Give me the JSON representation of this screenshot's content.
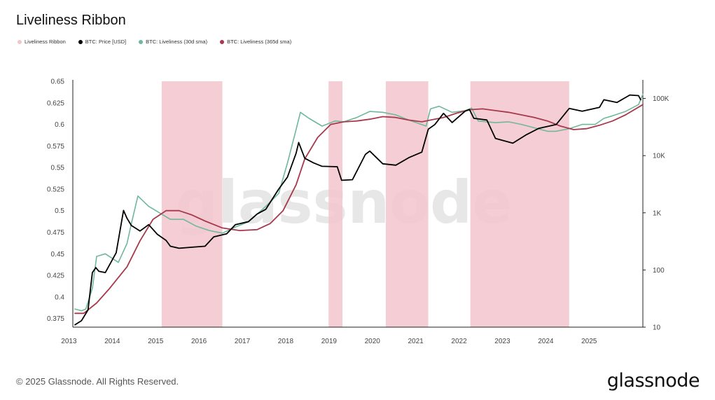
{
  "title": "Liveliness Ribbon",
  "legend": [
    {
      "label": "Liveliness Ribbon",
      "color": "#f2c6cc"
    },
    {
      "label": "BTC: Price [USD]",
      "color": "#000000"
    },
    {
      "label": "BTC: Liveliness (30d sma)",
      "color": "#6fb89a"
    },
    {
      "label": "BTC: Liveliness (365d sma)",
      "color": "#a8394d"
    }
  ],
  "watermark": "glassnode",
  "footer": "© 2025 Glassnode. All Rights Reserved.",
  "logo": "glassnode",
  "colors": {
    "ribbon": "#f2c6cc",
    "price": "#000000",
    "sma30": "#6fb89a",
    "sma365": "#a8394d",
    "axis": "#222222"
  },
  "chart_data": {
    "type": "line",
    "title": "Liveliness Ribbon",
    "x_range": [
      2012.75,
      2025.9
    ],
    "x_ticks": [
      "2013",
      "2014",
      "2015",
      "2016",
      "2017",
      "2018",
      "2019",
      "2020",
      "2021",
      "2022",
      "2023",
      "2024",
      "2025"
    ],
    "y_left": {
      "label": "",
      "range": [
        0.365,
        0.65
      ],
      "ticks": [
        "0.65",
        "0.625",
        "0.6",
        "0.575",
        "0.55",
        "0.525",
        "0.5",
        "0.475",
        "0.45",
        "0.425",
        "0.4",
        "0.375"
      ]
    },
    "y_right": {
      "label": "",
      "scale": "log",
      "range": [
        10,
        200000
      ],
      "ticks": [
        "100K",
        "10K",
        "1K",
        "100",
        "10"
      ]
    },
    "ribbon_periods": [
      [
        2014.8,
        2016.2
      ],
      [
        2018.65,
        2018.97
      ],
      [
        2019.97,
        2020.95
      ],
      [
        2021.92,
        2024.2
      ]
    ],
    "series": [
      {
        "name": "BTC: Price [USD]",
        "axis": "right",
        "x": [
          2012.8,
          2012.95,
          2013.1,
          2013.2,
          2013.28,
          2013.35,
          2013.5,
          2013.75,
          2013.92,
          2014.0,
          2014.1,
          2014.3,
          2014.5,
          2014.7,
          2014.9,
          2015.0,
          2015.2,
          2015.5,
          2015.8,
          2016.0,
          2016.3,
          2016.5,
          2016.8,
          2017.0,
          2017.2,
          2017.5,
          2017.7,
          2017.9,
          2017.96,
          2018.1,
          2018.3,
          2018.5,
          2018.85,
          2018.95,
          2019.2,
          2019.5,
          2019.6,
          2019.9,
          2020.2,
          2020.5,
          2020.8,
          2020.95,
          2021.1,
          2021.3,
          2021.5,
          2021.8,
          2021.9,
          2022.0,
          2022.3,
          2022.5,
          2022.9,
          2023.2,
          2023.5,
          2023.9,
          2024.2,
          2024.5,
          2024.9,
          2025.0,
          2025.3,
          2025.6,
          2025.8,
          2025.85
        ],
        "y": [
          11,
          13,
          20,
          90,
          110,
          95,
          90,
          200,
          1100,
          800,
          600,
          480,
          620,
          420,
          330,
          260,
          240,
          250,
          260,
          380,
          430,
          620,
          700,
          950,
          1150,
          2600,
          4200,
          11000,
          17000,
          9000,
          7500,
          6500,
          6400,
          3700,
          3800,
          10500,
          12000,
          7200,
          6800,
          9200,
          11500,
          29000,
          35000,
          55000,
          38000,
          60000,
          64000,
          45000,
          42000,
          20000,
          16500,
          23000,
          30000,
          35000,
          67000,
          60000,
          70000,
          95000,
          85000,
          115000,
          112000,
          95000
        ]
      },
      {
        "name": "BTC: Liveliness (30d sma)",
        "axis": "left",
        "x": [
          2012.8,
          2012.95,
          2013.05,
          2013.2,
          2013.3,
          2013.5,
          2013.8,
          2014.0,
          2014.1,
          2014.25,
          2014.5,
          2014.8,
          2015.0,
          2015.3,
          2015.6,
          2015.9,
          2016.2,
          2016.5,
          2016.8,
          2017.2,
          2017.5,
          2017.7,
          2017.9,
          2018.0,
          2018.2,
          2018.5,
          2018.8,
          2019.0,
          2019.3,
          2019.6,
          2019.9,
          2020.2,
          2020.5,
          2020.9,
          2021.0,
          2021.2,
          2021.5,
          2021.8,
          2021.95,
          2022.1,
          2022.5,
          2022.8,
          2023.1,
          2023.4,
          2023.7,
          2023.9,
          2024.2,
          2024.5,
          2024.8,
          2025.0,
          2025.2,
          2025.5,
          2025.8,
          2025.9
        ],
        "y": [
          0.386,
          0.384,
          0.386,
          0.41,
          0.447,
          0.45,
          0.44,
          0.462,
          0.485,
          0.517,
          0.505,
          0.496,
          0.49,
          0.49,
          0.482,
          0.477,
          0.474,
          0.481,
          0.487,
          0.505,
          0.52,
          0.555,
          0.594,
          0.614,
          0.607,
          0.598,
          0.604,
          0.603,
          0.608,
          0.615,
          0.614,
          0.611,
          0.605,
          0.598,
          0.618,
          0.621,
          0.614,
          0.616,
          0.619,
          0.604,
          0.602,
          0.603,
          0.6,
          0.596,
          0.592,
          0.592,
          0.595,
          0.6,
          0.6,
          0.607,
          0.61,
          0.615,
          0.623,
          0.635
        ]
      },
      {
        "name": "BTC: Liveliness (365d sma)",
        "axis": "left",
        "x": [
          2012.8,
          2013.0,
          2013.3,
          2013.6,
          2014.0,
          2014.3,
          2014.6,
          2014.9,
          2015.2,
          2015.5,
          2015.8,
          2016.2,
          2016.6,
          2017.0,
          2017.3,
          2017.6,
          2017.9,
          2018.1,
          2018.4,
          2018.7,
          2019.0,
          2019.3,
          2019.6,
          2019.9,
          2020.2,
          2020.5,
          2020.8,
          2021.0,
          2021.3,
          2021.6,
          2021.9,
          2022.2,
          2022.5,
          2022.8,
          2023.1,
          2023.4,
          2023.7,
          2024.0,
          2024.3,
          2024.6,
          2024.9,
          2025.2,
          2025.5,
          2025.9
        ],
        "y": [
          0.381,
          0.381,
          0.393,
          0.41,
          0.435,
          0.465,
          0.49,
          0.5,
          0.5,
          0.495,
          0.488,
          0.48,
          0.477,
          0.478,
          0.485,
          0.5,
          0.53,
          0.56,
          0.585,
          0.6,
          0.603,
          0.604,
          0.606,
          0.609,
          0.608,
          0.605,
          0.603,
          0.605,
          0.608,
          0.613,
          0.617,
          0.618,
          0.616,
          0.614,
          0.611,
          0.608,
          0.604,
          0.598,
          0.594,
          0.595,
          0.599,
          0.604,
          0.611,
          0.623
        ]
      }
    ]
  }
}
